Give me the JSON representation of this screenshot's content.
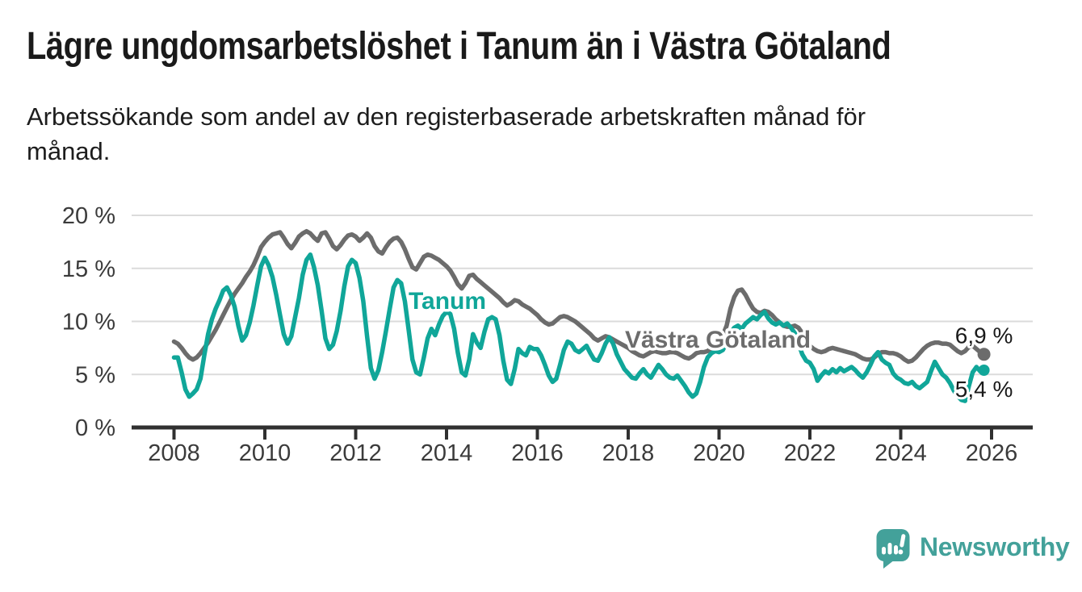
{
  "title": "Lägre ungdomsarbetslöshet i Tanum än i Västra Götaland",
  "subtitle_lines": [
    "Arbetssökande som andel av den registerbaserade arbetskraften månad för",
    "månad."
  ],
  "branding": {
    "name": "Newsworthy",
    "color": "#43A19A"
  },
  "chart_data": {
    "type": "line",
    "unit": "%",
    "frequency": "monthly",
    "x_start": "2008-01",
    "x_end": "2025-11",
    "ylim": [
      0,
      20
    ],
    "grid": "horizontal",
    "legend_position": "inline-labels",
    "x_ticks": [
      "2008",
      "2010",
      "2012",
      "2014",
      "2016",
      "2018",
      "2020",
      "2022",
      "2024",
      "2026"
    ],
    "y_ticks": [
      {
        "value": 0,
        "label": "0 %"
      },
      {
        "value": 5,
        "label": "5 %"
      },
      {
        "value": 10,
        "label": "10 %"
      },
      {
        "value": 15,
        "label": "15 %"
      },
      {
        "value": 20,
        "label": "20 %"
      }
    ],
    "series": [
      {
        "id": "tanum",
        "name": "Tanum",
        "color": "#10A699",
        "end_label": "5,4 %",
        "values": [
          6.6,
          6.6,
          5.2,
          3.6,
          2.9,
          3.2,
          3.6,
          4.6,
          6.8,
          8.8,
          10.2,
          11.2,
          12.0,
          12.9,
          13.2,
          12.5,
          11.4,
          9.6,
          8.2,
          8.7,
          9.9,
          11.5,
          13.4,
          15.2,
          16.0,
          15.3,
          14.2,
          12.5,
          10.6,
          8.8,
          7.9,
          8.6,
          10.4,
          12.2,
          14.4,
          15.8,
          16.3,
          15.1,
          13.4,
          11.0,
          8.4,
          7.4,
          7.8,
          9.1,
          11.0,
          13.3,
          15.2,
          15.8,
          15.5,
          14.1,
          11.9,
          8.6,
          5.6,
          4.6,
          5.4,
          7.1,
          9.1,
          11.2,
          13.2,
          13.9,
          13.6,
          11.9,
          9.2,
          6.4,
          5.2,
          5.0,
          6.6,
          8.4,
          9.3,
          8.7,
          9.7,
          10.5,
          10.9,
          10.7,
          9.3,
          7.0,
          5.2,
          4.9,
          6.4,
          8.8,
          8.0,
          7.5,
          9.0,
          10.2,
          10.4,
          10.2,
          8.7,
          6.3,
          4.5,
          4.1,
          5.5,
          7.4,
          7.0,
          6.8,
          7.6,
          7.4,
          7.4,
          6.8,
          5.9,
          4.9,
          4.3,
          4.6,
          5.9,
          7.3,
          8.1,
          7.9,
          7.3,
          7.1,
          7.4,
          7.7,
          7.0,
          6.4,
          6.3,
          7.0,
          7.9,
          8.5,
          7.9,
          6.9,
          6.2,
          5.5,
          5.1,
          4.7,
          4.6,
          5.1,
          5.5,
          5.0,
          4.7,
          5.3,
          5.9,
          5.5,
          5.0,
          4.7,
          4.6,
          4.9,
          4.4,
          3.9,
          3.3,
          2.9,
          3.2,
          4.3,
          5.7,
          6.6,
          7.0,
          7.2,
          7.1,
          7.3,
          8.0,
          8.9,
          9.4,
          9.6,
          9.3,
          9.8,
          10.1,
          10.4,
          10.2,
          10.6,
          10.9,
          10.3,
          9.9,
          9.7,
          9.9,
          9.6,
          9.8,
          9.4,
          8.9,
          7.9,
          6.9,
          6.3,
          6.1,
          5.5,
          4.4,
          4.9,
          5.3,
          5.1,
          5.5,
          5.2,
          5.6,
          5.3,
          5.5,
          5.7,
          5.4,
          5.0,
          4.7,
          5.2,
          5.9,
          6.7,
          7.1,
          6.4,
          6.1,
          5.9,
          5.1,
          4.7,
          4.5,
          4.2,
          4.1,
          4.3,
          3.9,
          3.7,
          4.0,
          4.3,
          5.3,
          6.2,
          5.6,
          5.0,
          4.7,
          4.2,
          3.5,
          3.0,
          2.6,
          2.5,
          3.9,
          5.2,
          5.7,
          5.3,
          5.4
        ]
      },
      {
        "id": "vastra-gotaland",
        "name": "Västra Götaland",
        "color": "#6C6C6C",
        "end_label": "6,9 %",
        "values": [
          8.1,
          7.9,
          7.5,
          7.0,
          6.6,
          6.4,
          6.6,
          7.0,
          7.5,
          8.0,
          8.6,
          9.2,
          9.9,
          10.6,
          11.3,
          12.0,
          12.6,
          13.1,
          13.6,
          14.2,
          14.7,
          15.3,
          16.1,
          17.0,
          17.5,
          17.9,
          18.2,
          18.3,
          18.4,
          17.9,
          17.3,
          16.9,
          17.4,
          18.0,
          18.3,
          18.5,
          18.3,
          17.9,
          17.6,
          18.3,
          18.4,
          17.8,
          17.1,
          16.8,
          17.2,
          17.7,
          18.1,
          18.2,
          18.0,
          17.6,
          17.9,
          18.3,
          17.9,
          17.1,
          16.6,
          16.4,
          17.0,
          17.5,
          17.8,
          17.9,
          17.5,
          16.8,
          15.9,
          15.1,
          14.9,
          15.5,
          16.1,
          16.3,
          16.2,
          16.0,
          15.8,
          15.5,
          15.2,
          14.8,
          14.2,
          13.5,
          13.1,
          13.6,
          14.3,
          14.4,
          14.0,
          13.7,
          13.4,
          13.1,
          12.8,
          12.5,
          12.2,
          11.8,
          11.5,
          11.7,
          12.0,
          11.9,
          11.6,
          11.4,
          11.2,
          10.9,
          10.6,
          10.2,
          9.9,
          9.7,
          9.8,
          10.1,
          10.4,
          10.5,
          10.4,
          10.2,
          10.0,
          9.7,
          9.4,
          9.1,
          8.8,
          8.4,
          8.2,
          8.4,
          8.6,
          8.5,
          8.3,
          8.1,
          7.9,
          7.7,
          7.5,
          7.2,
          7.0,
          6.8,
          6.7,
          6.9,
          7.1,
          7.2,
          7.1,
          7.0,
          7.0,
          7.1,
          7.1,
          7.0,
          6.8,
          6.6,
          6.5,
          6.7,
          7.0,
          7.1,
          7.1,
          7.2,
          7.5,
          7.9,
          8.3,
          8.7,
          9.6,
          11.2,
          12.3,
          12.9,
          13.0,
          12.5,
          11.8,
          11.2,
          10.9,
          10.8,
          11.0,
          10.9,
          10.6,
          10.2,
          9.9,
          9.6,
          9.5,
          9.5,
          9.6,
          9.4,
          8.9,
          8.3,
          7.7,
          7.4,
          7.2,
          7.1,
          7.2,
          7.4,
          7.5,
          7.4,
          7.3,
          7.2,
          7.1,
          7.0,
          6.9,
          6.7,
          6.5,
          6.4,
          6.4,
          6.6,
          6.9,
          7.1,
          7.1,
          7.0,
          7.0,
          6.9,
          6.7,
          6.4,
          6.2,
          6.3,
          6.6,
          7.0,
          7.4,
          7.7,
          7.9,
          8.0,
          8.0,
          7.9,
          7.9,
          7.8,
          7.5,
          7.2,
          7.0,
          7.2,
          7.6,
          7.7,
          7.4,
          7.1,
          6.9
        ]
      }
    ]
  }
}
